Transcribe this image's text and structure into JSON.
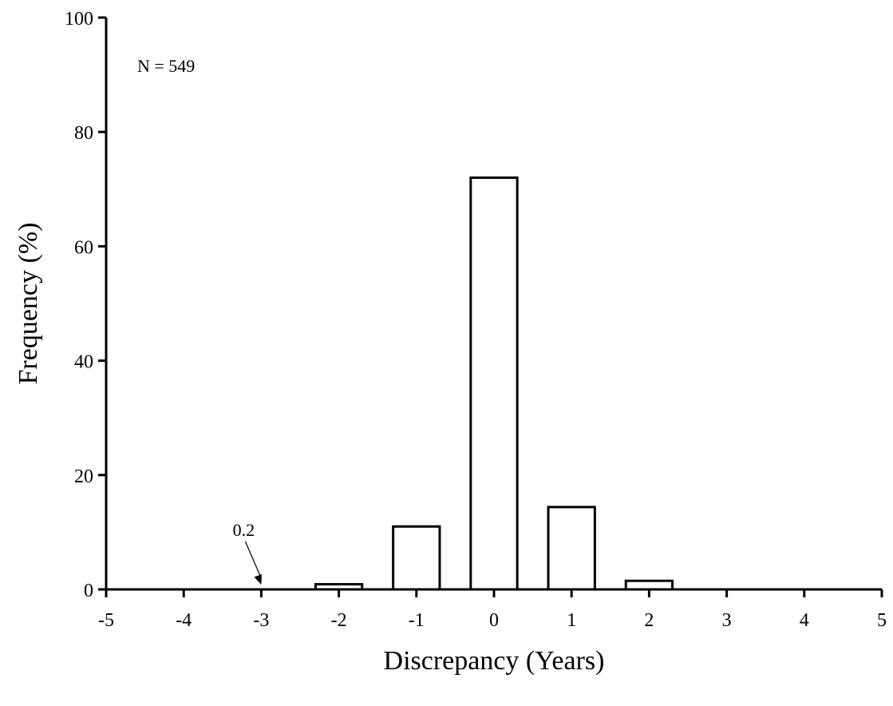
{
  "chart_data": {
    "type": "bar",
    "title": "",
    "xlabel": "Discrepancy (Years)",
    "ylabel": "Frequency (%)",
    "x": [
      -5,
      -4,
      -3,
      -2,
      -1,
      0,
      1,
      2,
      3,
      4,
      5
    ],
    "values": [
      0,
      0,
      0.2,
      0.9,
      11,
      72,
      14.4,
      1.5,
      0,
      0,
      0
    ],
    "xlim": [
      -5,
      5
    ],
    "ylim": [
      0,
      100
    ],
    "xticks": [
      "-5",
      "-4",
      "-3",
      "-2",
      "-1",
      "0",
      "1",
      "2",
      "3",
      "4",
      "5"
    ],
    "yticks": [
      "0",
      "20",
      "40",
      "60",
      "80",
      "100"
    ],
    "grid": false,
    "legend": "none",
    "annotations": [
      {
        "text": "N = 549"
      },
      {
        "text": "0.2",
        "target_x": -3
      }
    ],
    "colors": {
      "bar_fill": "#ffffff",
      "bar_stroke": "#000000",
      "axis": "#000000"
    }
  }
}
